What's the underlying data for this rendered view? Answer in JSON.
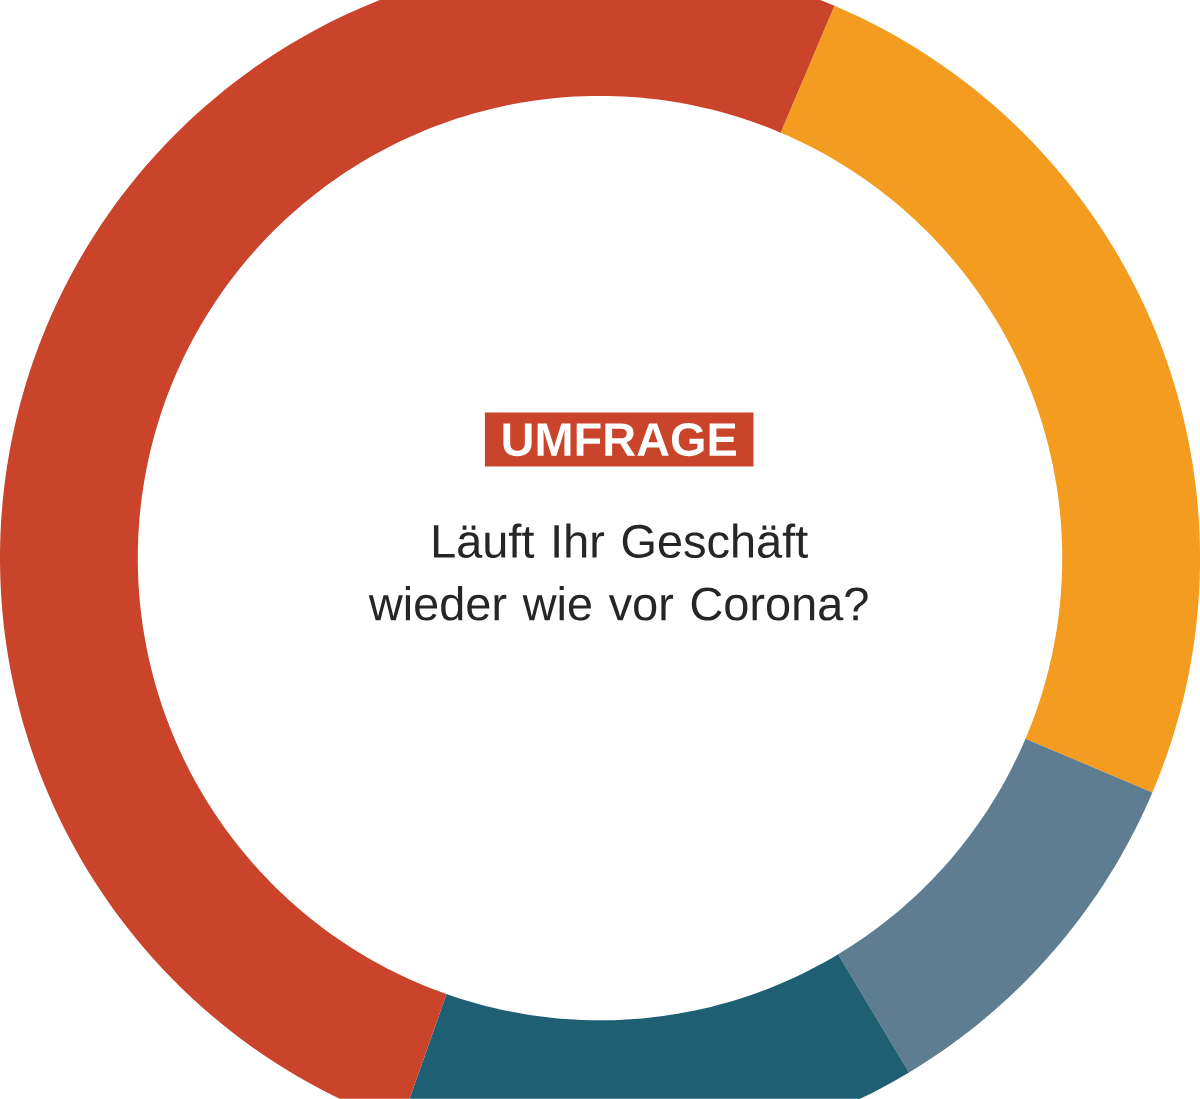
{
  "chart_data": {
    "type": "donut",
    "title": "UMFRAGE",
    "subtitle": "Läuft Ihr Geschäft wieder wie vor Corona?",
    "categories": [
      null,
      null,
      null,
      null
    ],
    "values": [
      25,
      10,
      14,
      51
    ],
    "colors": [
      "#f39c1f",
      "#5f7d91",
      "#1e5f73",
      "#c9442a"
    ]
  }
}
